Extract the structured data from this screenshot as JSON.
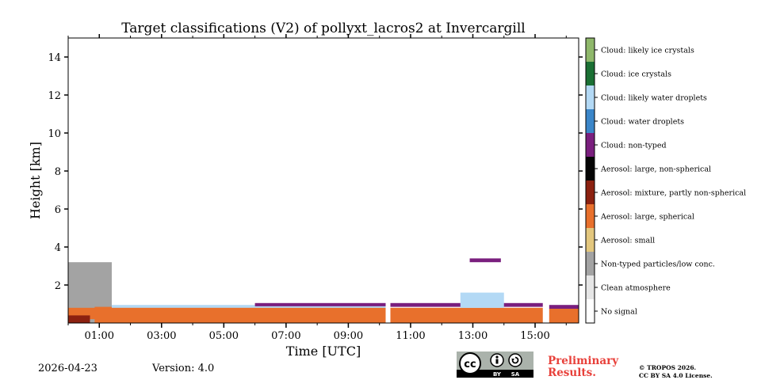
{
  "chart_data": {
    "type": "heatmap",
    "title": "Target classifications (V2) of pollyxt_lacros2 at Invercargill",
    "xlabel": "Time [UTC]",
    "ylabel": "Height [km]",
    "xlim_hours": [
      0.0,
      16.4
    ],
    "ylim": [
      0,
      15
    ],
    "xticks": [
      {
        "hour": 1,
        "label": "01:00"
      },
      {
        "hour": 3,
        "label": "03:00"
      },
      {
        "hour": 5,
        "label": "05:00"
      },
      {
        "hour": 7,
        "label": "07:00"
      },
      {
        "hour": 9,
        "label": "09:00"
      },
      {
        "hour": 11,
        "label": "11:00"
      },
      {
        "hour": 13,
        "label": "13:00"
      },
      {
        "hour": 15,
        "label": "15:00"
      }
    ],
    "yticks": [
      {
        "value": 2,
        "label": "2"
      },
      {
        "value": 4,
        "label": "4"
      },
      {
        "value": 6,
        "label": "6"
      },
      {
        "value": 8,
        "label": "8"
      },
      {
        "value": 10,
        "label": "10"
      },
      {
        "value": 12,
        "label": "12"
      },
      {
        "value": 14,
        "label": "14"
      }
    ],
    "classes": [
      {
        "label": "No signal",
        "color": "#ffffff"
      },
      {
        "label": "Clean atmosphere",
        "color": "#e6e6e6"
      },
      {
        "label": "Non-typed particles/low conc.",
        "color": "#a3a3a3"
      },
      {
        "label": "Aerosol: small",
        "color": "#e3c77e"
      },
      {
        "label": "Aerosol: large, spherical",
        "color": "#e8702c"
      },
      {
        "label": "Aerosol: mixture, partly non-spherical",
        "color": "#8c2110"
      },
      {
        "label": "Aerosol: large, non-spherical",
        "color": "#050505"
      },
      {
        "label": "Cloud: non-typed",
        "color": "#7a1f7e"
      },
      {
        "label": "Cloud: water droplets",
        "color": "#3b86c9"
      },
      {
        "label": "Cloud: likely water droplets",
        "color": "#b3d9f5"
      },
      {
        "label": "Cloud: ice crystals",
        "color": "#1b7034"
      },
      {
        "label": "Cloud: likely ice crystals",
        "color": "#8fb86b"
      }
    ],
    "layers": [
      {
        "class": "Non-typed particles/low conc.",
        "start": 0.0,
        "end": 1.4,
        "bottom": 0.0,
        "top": 3.2
      },
      {
        "class": "Aerosol: large, spherical",
        "start": 0.0,
        "end": 1.4,
        "bottom": 0.2,
        "top": 0.8
      },
      {
        "class": "Aerosol: mixture, partly non-spherical",
        "start": 0.0,
        "end": 0.7,
        "bottom": 0.0,
        "top": 0.4
      },
      {
        "class": "Aerosol: large, spherical",
        "start": 0.85,
        "end": 10.2,
        "bottom": 0.0,
        "top": 0.85
      },
      {
        "class": "Cloud: likely water droplets",
        "start": 1.4,
        "end": 10.2,
        "bottom": 0.8,
        "top": 0.95
      },
      {
        "class": "Cloud: non-typed",
        "start": 6.0,
        "end": 10.2,
        "bottom": 0.88,
        "top": 1.05
      },
      {
        "class": "Aerosol: large, spherical",
        "start": 10.35,
        "end": 15.25,
        "bottom": 0.0,
        "top": 0.8
      },
      {
        "class": "Cloud: non-typed",
        "start": 10.35,
        "end": 15.25,
        "bottom": 0.85,
        "top": 1.05
      },
      {
        "class": "Cloud: likely water droplets",
        "start": 12.6,
        "end": 14.0,
        "bottom": 0.8,
        "top": 1.6
      },
      {
        "class": "Cloud: non-typed",
        "start": 12.9,
        "end": 13.9,
        "bottom": 3.2,
        "top": 3.4
      },
      {
        "class": "Aerosol: large, spherical",
        "start": 15.45,
        "end": 16.4,
        "bottom": 0.0,
        "top": 0.75
      },
      {
        "class": "Cloud: non-typed",
        "start": 15.45,
        "end": 16.4,
        "bottom": 0.75,
        "top": 0.95
      }
    ],
    "data_gaps_hours": [
      [
        10.2,
        10.35
      ],
      [
        15.25,
        15.45
      ]
    ],
    "legend_placement": "right colorbar"
  },
  "footer": {
    "date": "2026-04-23",
    "version": "Version: 4.0",
    "preliminary": "Preliminary Results.",
    "copyright_line1": "© TROPOS 2026.",
    "copyright_line2": "CC BY SA 4.0 License."
  },
  "license_badge": {
    "text": "cc",
    "by": "BY",
    "sa": "SA"
  }
}
